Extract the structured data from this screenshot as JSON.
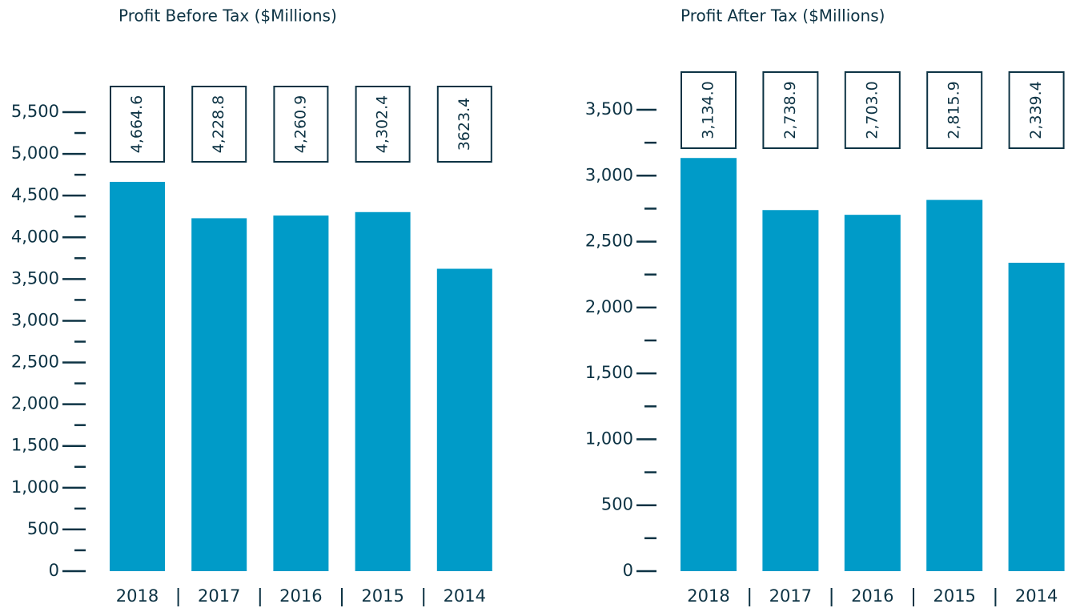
{
  "chart_data": [
    {
      "type": "bar",
      "title": "Profit Before Tax ($Millions)",
      "categories": [
        "2018",
        "2017",
        "2016",
        "2015",
        "2014"
      ],
      "values": [
        4664.6,
        4228.8,
        4260.9,
        4302.4,
        3623.4
      ],
      "value_labels": [
        "4,664.6",
        "4,228.8",
        "4,260.9",
        "4,302.4",
        "3623.4"
      ],
      "color": "#009bc8",
      "ylim": [
        0,
        5500
      ],
      "yticks": [
        0,
        500,
        {
          "value": 1000,
          "label": "1,000"
        },
        {
          "value": 1500,
          "label": "1,500"
        },
        {
          "value": 2000,
          "label": "2,000"
        },
        {
          "value": 2500,
          "label": "2,500"
        },
        {
          "value": 3000,
          "label": "3,000"
        },
        {
          "value": 3500,
          "label": "3,500"
        },
        {
          "value": 4000,
          "label": "4,000"
        },
        {
          "value": 4500,
          "label": "4,500"
        },
        {
          "value": 5000,
          "label": "5,000"
        },
        {
          "value": 5500,
          "label": "5,500"
        }
      ]
    },
    {
      "type": "bar",
      "title": "Profit After Tax ($Millions)",
      "categories": [
        "2018",
        "2017",
        "2016",
        "2015",
        "2014"
      ],
      "values": [
        3134.0,
        2738.9,
        2703.0,
        2815.9,
        2339.4
      ],
      "value_labels": [
        "3,134.0",
        "2,738.9",
        "2,703.0",
        "2,815.9",
        "2,339.4"
      ],
      "color": "#009bc8",
      "ylim": [
        0,
        3500
      ],
      "yticks": [
        0,
        500,
        {
          "value": 1000,
          "label": "1,000"
        },
        {
          "value": 1500,
          "label": "1,500"
        },
        {
          "value": 2000,
          "label": "2,000"
        },
        {
          "value": 2500,
          "label": "2,500"
        },
        {
          "value": 3000,
          "label": "3,000"
        },
        {
          "value": 3500,
          "label": "3,500"
        }
      ]
    }
  ]
}
